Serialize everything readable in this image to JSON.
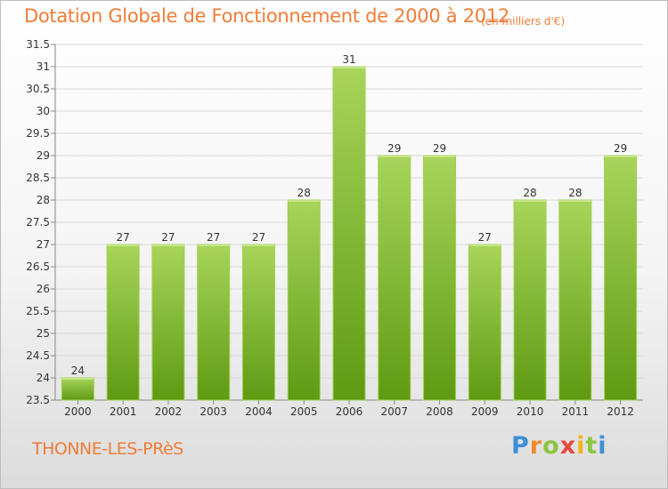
{
  "header": {
    "title": "Dotation Globale de Fonctionnement de 2000 à 2012",
    "subtitle": "(en milliers d'€)"
  },
  "footer": {
    "commune": "THONNE-LES-PRèS",
    "logo_text": "Proxiti"
  },
  "colors": {
    "accent": "#f07c38",
    "bar_top": "#a8d55b",
    "bar_bottom": "#5f9a12",
    "grid": "#d9d9d9",
    "axis": "#888888"
  },
  "chart_data": {
    "type": "bar",
    "categories": [
      "2000",
      "2001",
      "2002",
      "2003",
      "2004",
      "2005",
      "2006",
      "2007",
      "2008",
      "2009",
      "2010",
      "2011",
      "2012"
    ],
    "values": [
      24,
      27,
      27,
      27,
      27,
      28,
      31,
      29,
      29,
      27,
      28,
      28,
      29
    ],
    "ylim": [
      23.5,
      31.5
    ],
    "yticks": [
      "23.5",
      "24",
      "24.5",
      "25",
      "25.5",
      "26",
      "26.5",
      "27",
      "27.5",
      "28",
      "28.5",
      "29",
      "29.5",
      "30",
      "30.5",
      "31",
      "31.5"
    ],
    "grid": true,
    "data_labels": true
  }
}
